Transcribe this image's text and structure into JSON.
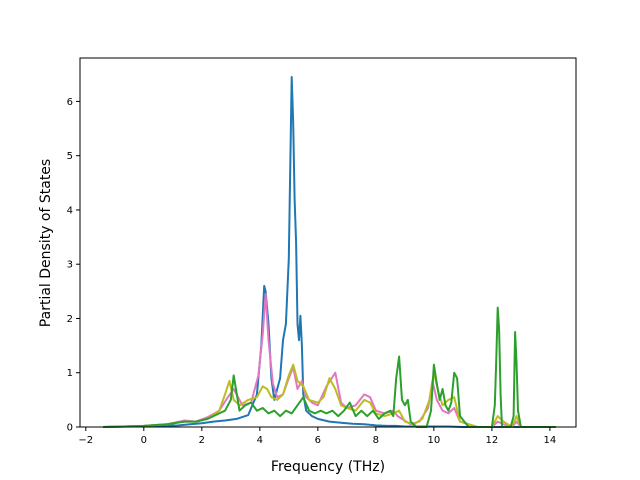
{
  "chart_data": {
    "type": "line",
    "xlabel": "Frequency (THz)",
    "ylabel": "Partial Density of States",
    "xlim": [
      -2.2,
      14.9
    ],
    "ylim": [
      0,
      6.8
    ],
    "x_ticks": [
      -2,
      0,
      2,
      4,
      6,
      8,
      10,
      12,
      14
    ],
    "y_ticks": [
      0,
      1,
      2,
      3,
      4,
      5,
      6
    ],
    "grid": false,
    "legend": "none",
    "series": [
      {
        "color": "#1f77b4",
        "x": [
          -1.4,
          -0.5,
          0.5,
          1.2,
          1.6,
          2.0,
          2.4,
          2.8,
          3.2,
          3.6,
          3.9,
          4.05,
          4.15,
          4.2,
          4.3,
          4.4,
          4.5,
          4.7,
          4.8,
          4.9,
          5.0,
          5.1,
          5.15,
          5.2,
          5.25,
          5.3,
          5.35,
          5.4,
          5.45,
          5.5,
          5.6,
          5.8,
          6.0,
          6.4,
          6.8,
          7.2,
          7.6,
          8.0,
          8.4,
          8.7,
          9.0,
          9.5,
          10.0,
          10.5,
          11.0,
          11.5,
          12.0,
          12.5,
          13.0,
          13.5,
          14.2
        ],
        "y": [
          0,
          0.01,
          0.02,
          0.03,
          0.05,
          0.07,
          0.1,
          0.12,
          0.15,
          0.22,
          0.6,
          1.5,
          2.6,
          2.5,
          1.9,
          0.9,
          0.5,
          0.9,
          1.6,
          1.9,
          3.1,
          6.45,
          5.6,
          4.2,
          3.4,
          1.9,
          1.6,
          2.05,
          1.5,
          0.6,
          0.3,
          0.2,
          0.15,
          0.1,
          0.08,
          0.06,
          0.05,
          0.03,
          0.02,
          0.02,
          0.01,
          0.01,
          0.01,
          0.01,
          0.0,
          0.0,
          0.0,
          0.0,
          0.0,
          0.0,
          0.0
        ]
      },
      {
        "color": "#e377c2",
        "x": [
          -1.4,
          0.0,
          0.8,
          1.4,
          1.8,
          2.2,
          2.6,
          2.9,
          3.1,
          3.4,
          3.7,
          3.95,
          4.1,
          4.2,
          4.3,
          4.45,
          4.6,
          4.8,
          5.0,
          5.15,
          5.3,
          5.45,
          5.6,
          5.8,
          6.0,
          6.3,
          6.6,
          6.8,
          7.0,
          7.3,
          7.6,
          7.8,
          8.0,
          8.3,
          8.6,
          8.75,
          8.9,
          9.2,
          9.5,
          9.8,
          9.95,
          10.1,
          10.3,
          10.5,
          10.7,
          10.9,
          11.5,
          12.0,
          12.2,
          12.4,
          12.7,
          12.85,
          13.0,
          13.5,
          14.2
        ],
        "y": [
          0,
          0.02,
          0.05,
          0.12,
          0.1,
          0.18,
          0.3,
          0.55,
          0.7,
          0.4,
          0.45,
          0.95,
          1.7,
          2.45,
          1.6,
          0.8,
          0.55,
          0.6,
          0.9,
          1.1,
          0.7,
          0.85,
          0.55,
          0.45,
          0.4,
          0.75,
          1.0,
          0.45,
          0.35,
          0.4,
          0.6,
          0.55,
          0.3,
          0.25,
          0.3,
          0.2,
          0.15,
          0.05,
          0.1,
          0.35,
          0.85,
          0.5,
          0.3,
          0.25,
          0.35,
          0.1,
          0.0,
          0.0,
          0.1,
          0.05,
          0.0,
          0.1,
          0.0,
          0.0,
          0.0
        ]
      },
      {
        "color": "#bcbd22",
        "x": [
          -1.4,
          0.0,
          0.8,
          1.4,
          1.8,
          2.2,
          2.6,
          2.8,
          2.95,
          3.1,
          3.3,
          3.6,
          3.9,
          4.1,
          4.25,
          4.4,
          4.6,
          4.8,
          5.0,
          5.15,
          5.3,
          5.5,
          5.7,
          6.0,
          6.2,
          6.4,
          6.6,
          6.8,
          7.0,
          7.3,
          7.6,
          7.8,
          8.0,
          8.3,
          8.6,
          8.8,
          9.0,
          9.3,
          9.6,
          9.85,
          10.0,
          10.15,
          10.3,
          10.5,
          10.7,
          10.9,
          11.5,
          12.0,
          12.2,
          12.4,
          12.7,
          12.85,
          13.0,
          13.5,
          14.2
        ],
        "y": [
          0,
          0.02,
          0.05,
          0.1,
          0.1,
          0.15,
          0.3,
          0.6,
          0.85,
          0.5,
          0.4,
          0.5,
          0.55,
          0.75,
          0.7,
          0.55,
          0.5,
          0.6,
          0.95,
          1.15,
          0.85,
          0.75,
          0.5,
          0.45,
          0.55,
          0.9,
          0.7,
          0.4,
          0.35,
          0.3,
          0.5,
          0.45,
          0.25,
          0.2,
          0.25,
          0.3,
          0.1,
          0.05,
          0.15,
          0.5,
          1.0,
          0.65,
          0.4,
          0.5,
          0.55,
          0.1,
          0.0,
          0.0,
          0.2,
          0.1,
          0.0,
          0.2,
          0.0,
          0.0,
          0.0
        ]
      },
      {
        "color": "#2ca02c",
        "x": [
          -1.4,
          0.0,
          0.8,
          1.4,
          1.8,
          2.2,
          2.6,
          2.8,
          3.0,
          3.1,
          3.3,
          3.5,
          3.7,
          3.9,
          4.1,
          4.3,
          4.5,
          4.7,
          4.9,
          5.1,
          5.3,
          5.5,
          5.7,
          5.9,
          6.1,
          6.3,
          6.5,
          6.7,
          6.9,
          7.1,
          7.3,
          7.5,
          7.7,
          7.9,
          8.1,
          8.3,
          8.5,
          8.6,
          8.7,
          8.8,
          8.9,
          9.0,
          9.1,
          9.2,
          9.4,
          9.6,
          9.75,
          9.9,
          10.0,
          10.1,
          10.2,
          10.3,
          10.4,
          10.5,
          10.6,
          10.7,
          10.8,
          10.9,
          11.2,
          11.6,
          12.0,
          12.1,
          12.15,
          12.2,
          12.25,
          12.3,
          12.35,
          12.5,
          12.65,
          12.75,
          12.8,
          12.85,
          12.9,
          13.0,
          13.5,
          14.2
        ],
        "y": [
          0,
          0.02,
          0.05,
          0.1,
          0.1,
          0.15,
          0.25,
          0.3,
          0.5,
          0.95,
          0.3,
          0.4,
          0.45,
          0.3,
          0.35,
          0.25,
          0.3,
          0.2,
          0.3,
          0.25,
          0.4,
          0.55,
          0.3,
          0.25,
          0.3,
          0.25,
          0.3,
          0.2,
          0.3,
          0.45,
          0.2,
          0.3,
          0.2,
          0.3,
          0.15,
          0.25,
          0.3,
          0.2,
          0.9,
          1.3,
          0.5,
          0.4,
          0.5,
          0.1,
          0.0,
          0.0,
          0.0,
          0.3,
          1.15,
          0.8,
          0.5,
          0.7,
          0.4,
          0.3,
          0.45,
          1.0,
          0.9,
          0.2,
          0.0,
          0.0,
          0.0,
          0.4,
          1.2,
          2.2,
          1.8,
          0.6,
          0.0,
          0.0,
          0.0,
          0.2,
          1.75,
          1.2,
          0.3,
          0.0,
          0.0,
          0.0
        ]
      }
    ]
  }
}
